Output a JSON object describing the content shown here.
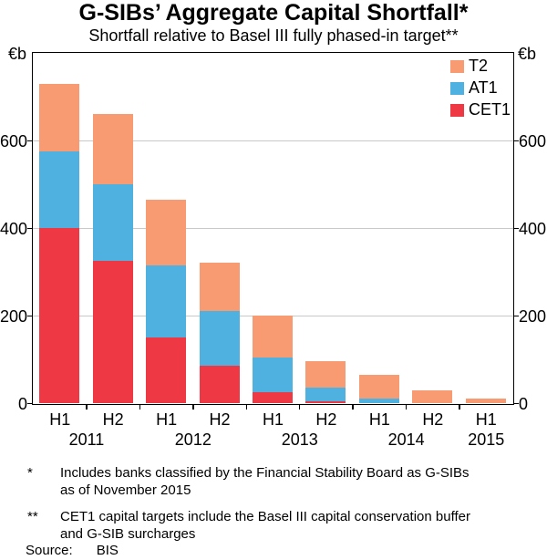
{
  "title": "G-SIBs’ Aggregate Capital Shortfall*",
  "subtitle": "Shortfall relative to Basel III fully phased-in target**",
  "legend": [
    {
      "label": "T2",
      "color": "#f89b72"
    },
    {
      "label": "AT1",
      "color": "#4fb1e0"
    },
    {
      "label": "CET1",
      "color": "#ee3944"
    }
  ],
  "chart_data": {
    "type": "bar",
    "stacked": true,
    "unit": "€b",
    "title": "G-SIBs’ Aggregate Capital Shortfall",
    "xlabel": "",
    "ylabel": "€b",
    "ylim": [
      0,
      800
    ],
    "yticks": [
      0,
      200,
      400,
      600
    ],
    "grid": true,
    "legend_position": "top-right",
    "categories": [
      "H1",
      "H2",
      "H1",
      "H2",
      "H1",
      "H2",
      "H1",
      "H2",
      "H1"
    ],
    "year_groups": [
      {
        "label": "2011",
        "start": 0,
        "span": 2
      },
      {
        "label": "2012",
        "start": 2,
        "span": 2
      },
      {
        "label": "2013",
        "start": 4,
        "span": 2
      },
      {
        "label": "2014",
        "start": 6,
        "span": 2
      },
      {
        "label": "2015",
        "start": 8,
        "span": 1
      }
    ],
    "series": [
      {
        "name": "CET1",
        "color": "#ee3944",
        "values": [
          400,
          325,
          150,
          85,
          25,
          5,
          0,
          0,
          0
        ]
      },
      {
        "name": "AT1",
        "color": "#4fb1e0",
        "values": [
          175,
          175,
          165,
          125,
          80,
          30,
          10,
          0,
          0
        ]
      },
      {
        "name": "T2",
        "color": "#f89b72",
        "values": [
          155,
          160,
          150,
          110,
          95,
          60,
          55,
          30,
          10
        ]
      }
    ],
    "totals": [
      730,
      660,
      465,
      320,
      200,
      95,
      65,
      30,
      10
    ]
  },
  "footnotes": [
    {
      "marker": "*",
      "line1": "Includes banks classified by the Financial Stability Board as G-SIBs",
      "line2": "as of November 2015"
    },
    {
      "marker": "**",
      "line1": "CET1 capital targets include the Basel III capital conservation buffer",
      "line2": "and G-SIB surcharges"
    }
  ],
  "source": {
    "label": "Source:",
    "value": "BIS"
  }
}
